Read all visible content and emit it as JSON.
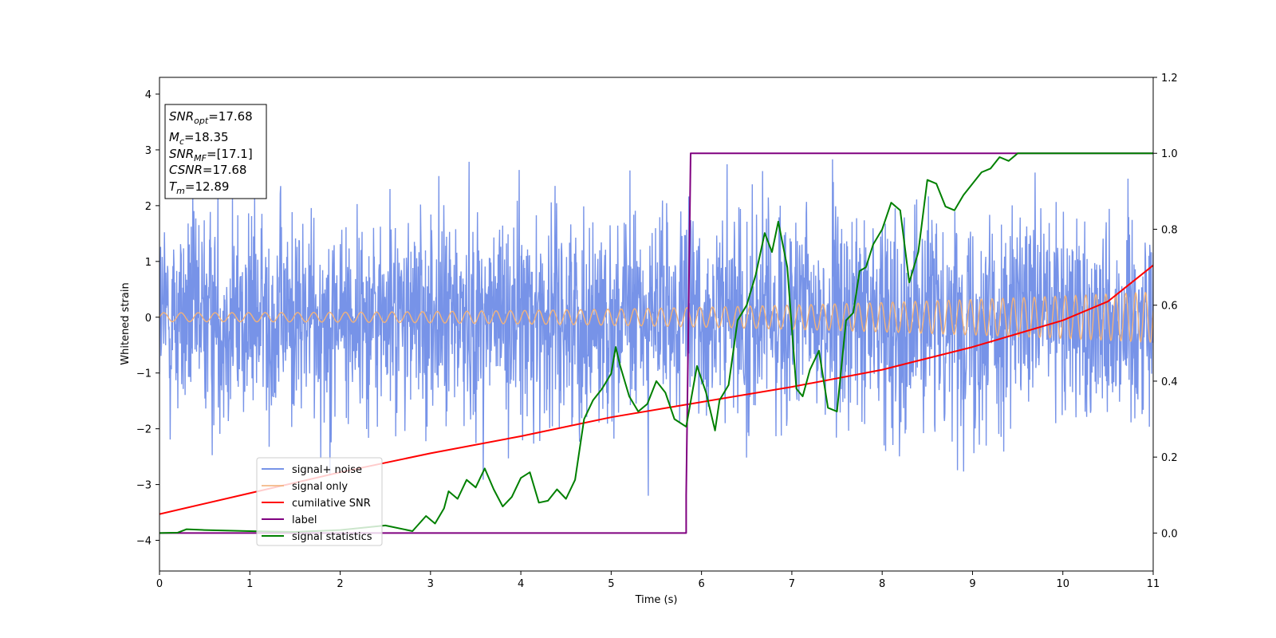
{
  "chart_data": {
    "type": "line",
    "xlabel": "Time (s)",
    "ylabel": "Whitened strain",
    "xlim": [
      0,
      11
    ],
    "ylim_left": [
      -4.55,
      4.3
    ],
    "ylim_right": [
      -0.1,
      1.2
    ],
    "x_ticks": [
      "0",
      "1",
      "2",
      "3",
      "4",
      "5",
      "6",
      "7",
      "8",
      "9",
      "10",
      "11"
    ],
    "y_ticks_left": [
      "−4",
      "−3",
      "−2",
      "−1",
      "0",
      "1",
      "2",
      "3",
      "4"
    ],
    "y_ticks_right": [
      "0.0",
      "0.2",
      "0.4",
      "0.6",
      "0.8",
      "1.0",
      "1.2"
    ],
    "legend_position": "lower-left",
    "info_box": {
      "snr_opt_base": "SNR",
      "snr_opt_sub": "opt",
      "snr_opt_value": "=17.68",
      "mc_base": "M",
      "mc_sub": "c",
      "mc_value": "=18.35",
      "snr_mf_base": "SNR",
      "snr_mf_sub": "MF",
      "snr_mf_value": "=[17.1]",
      "csnr_base": "CSNR",
      "csnr_value": "=17.68",
      "tm_base": "T",
      "tm_sub": "m",
      "tm_value": "=12.89"
    },
    "series": [
      {
        "name": "signal+ noise",
        "color": "#7793e8",
        "axis": "left",
        "description_values": "gaussian-like noise, amplitude roughly between -4 and 4 around 0"
      },
      {
        "name": "signal only",
        "color": "#f2b27a",
        "axis": "left",
        "chirp_amplitude_start": 0.08,
        "chirp_amplitude_end": 0.45
      },
      {
        "name": "cumilative SNR",
        "color": "#ff0000",
        "axis": "right",
        "x": [
          0,
          1,
          2,
          3,
          4,
          5,
          6,
          7,
          8,
          9,
          10,
          10.5,
          11
        ],
        "y": [
          0.05,
          0.105,
          0.16,
          0.21,
          0.255,
          0.305,
          0.345,
          0.385,
          0.43,
          0.49,
          0.56,
          0.61,
          0.705
        ]
      },
      {
        "name": "label",
        "color": "#800080",
        "axis": "right",
        "x": [
          0,
          5.83,
          5.83,
          5.88,
          11
        ],
        "y": [
          0.0,
          0.0,
          0.1,
          1.0,
          1.0
        ]
      },
      {
        "name": "signal statistics",
        "color": "#008000",
        "axis": "right",
        "x": [
          0,
          0.2,
          0.3,
          0.5,
          1.0,
          1.5,
          2.0,
          2.5,
          2.8,
          2.95,
          3.05,
          3.15,
          3.2,
          3.3,
          3.4,
          3.5,
          3.6,
          3.7,
          3.8,
          3.9,
          4.0,
          4.1,
          4.2,
          4.3,
          4.4,
          4.5,
          4.6,
          4.7,
          4.8,
          4.9,
          5.0,
          5.05,
          5.1,
          5.2,
          5.3,
          5.4,
          5.5,
          5.6,
          5.7,
          5.83,
          5.95,
          6.05,
          6.15,
          6.2,
          6.3,
          6.4,
          6.5,
          6.6,
          6.7,
          6.78,
          6.85,
          6.95,
          7.05,
          7.12,
          7.2,
          7.3,
          7.4,
          7.5,
          7.6,
          7.68,
          7.75,
          7.82,
          7.9,
          8.0,
          8.1,
          8.2,
          8.3,
          8.4,
          8.5,
          8.6,
          8.7,
          8.8,
          8.9,
          9.0,
          9.1,
          9.2,
          9.3,
          9.4,
          9.5,
          9.6,
          9.7,
          9.8,
          10.0,
          10.2,
          10.4,
          10.6,
          10.8,
          11.0
        ],
        "y": [
          0.0,
          0.001,
          0.01,
          0.008,
          0.005,
          0.003,
          0.008,
          0.02,
          0.005,
          0.045,
          0.025,
          0.065,
          0.11,
          0.09,
          0.14,
          0.12,
          0.17,
          0.115,
          0.07,
          0.095,
          0.145,
          0.16,
          0.08,
          0.085,
          0.115,
          0.09,
          0.14,
          0.3,
          0.35,
          0.38,
          0.42,
          0.49,
          0.44,
          0.36,
          0.32,
          0.34,
          0.4,
          0.37,
          0.3,
          0.28,
          0.44,
          0.37,
          0.27,
          0.35,
          0.39,
          0.56,
          0.6,
          0.68,
          0.79,
          0.74,
          0.82,
          0.7,
          0.38,
          0.36,
          0.43,
          0.48,
          0.33,
          0.32,
          0.56,
          0.58,
          0.69,
          0.7,
          0.76,
          0.8,
          0.87,
          0.85,
          0.66,
          0.74,
          0.93,
          0.92,
          0.86,
          0.85,
          0.89,
          0.92,
          0.95,
          0.96,
          0.99,
          0.98,
          1.0,
          1.0,
          1.0,
          1.0,
          1.0,
          1.0,
          1.0,
          1.0,
          1.0,
          1.0
        ]
      }
    ]
  }
}
